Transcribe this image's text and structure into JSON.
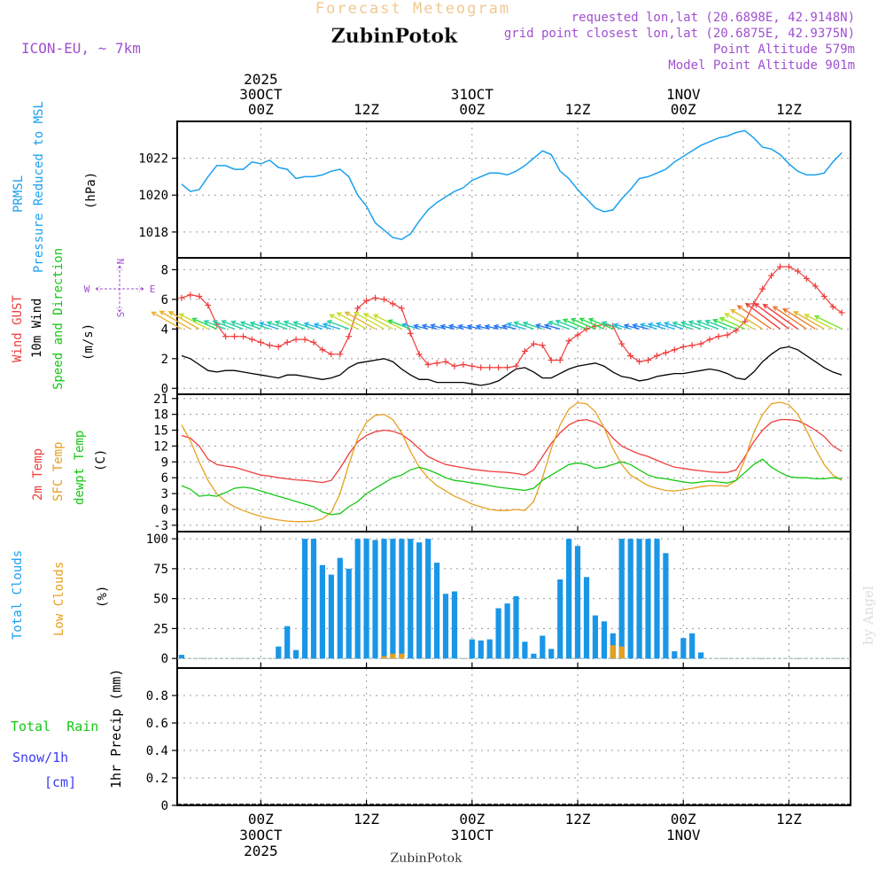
{
  "header": {
    "subtitle": "Forecast Meteogram",
    "station": "ZubinPotok",
    "model": "ICON-EU, ~ 7km",
    "requested": "requested lon,lat (20.6898E, 42.9148N)",
    "closest": "grid point closest lon,lat (20.6875E, 42.9375N)",
    "point_altitude": "Point Altitude 579m",
    "model_altitude": "Model Point Altitude 901m"
  },
  "footer": {
    "station": "ZubinPotok",
    "watermark": "by Angel"
  },
  "time_axis": {
    "top_labels": [
      {
        "h": 0,
        "lines": [
          "2025",
          "30OCT",
          "00Z"
        ]
      },
      {
        "h": 12,
        "lines": [
          "12Z"
        ]
      },
      {
        "h": 24,
        "lines": [
          "31OCT",
          "00Z"
        ]
      },
      {
        "h": 36,
        "lines": [
          "12Z"
        ]
      },
      {
        "h": 48,
        "lines": [
          "1NOV",
          "00Z"
        ]
      },
      {
        "h": 60,
        "lines": [
          "12Z"
        ]
      }
    ],
    "bottom_labels": [
      {
        "h": 0,
        "lines": [
          "00Z",
          "30OCT",
          "2025"
        ]
      },
      {
        "h": 12,
        "lines": [
          "12Z"
        ]
      },
      {
        "h": 24,
        "lines": [
          "00Z",
          "31OCT"
        ]
      },
      {
        "h": 36,
        "lines": [
          "12Z"
        ]
      },
      {
        "h": 48,
        "lines": [
          "00Z",
          "1NOV"
        ]
      },
      {
        "h": 60,
        "lines": [
          "12Z"
        ]
      }
    ]
  },
  "panel_labels": {
    "prmsl": "PRMSL",
    "pressure": "Pressure Reduced to MSL",
    "hpa": "(hPa)",
    "gust": "Wind GUST",
    "wind10": "10m Wind",
    "speed_dir": "Speed and Direction",
    "ms": "(m/s)",
    "compass_n": "N",
    "compass_s": "S",
    "compass_w": "W",
    "compass_e": "E",
    "t2m": "2m Temp",
    "sfc": "SFC Temp",
    "dewpt": "dewpt Temp",
    "degc": "(C)",
    "total_clouds": "Total Clouds",
    "low_clouds": "Low Clouds",
    "pct": "(%)",
    "total_rain": "Total  Rain",
    "snow": "Snow/1h",
    "cm": "[cm]",
    "precip": "1hr Precip (mm)"
  },
  "colors": {
    "pressure": "#1aa0f0",
    "gust": "#f03c3c",
    "wind": "#000000",
    "t2m": "#f03c3c",
    "sfc": "#e6a020",
    "dew": "#14c814",
    "total_clouds": "#1a96e6",
    "low_clouds": "#e6a020",
    "rain": "#14c814",
    "snow": "#3c3cf0",
    "title": "#f0c890",
    "purple": "#a050d0"
  },
  "chart_data": [
    {
      "type": "line",
      "title": "PRMSL Pressure Reduced to MSL",
      "ylabel": "(hPa)",
      "ylim": [
        1016.6,
        1024.0
      ],
      "yticks": [
        1018,
        1020,
        1022
      ],
      "xlim": [
        -9.5,
        67
      ],
      "hours": [
        -9,
        -8,
        -7,
        -6,
        -5,
        -4,
        -3,
        -2,
        -1,
        0,
        1,
        2,
        3,
        4,
        5,
        6,
        7,
        8,
        9,
        10,
        11,
        12,
        13,
        14,
        15,
        16,
        17,
        18,
        19,
        20,
        21,
        22,
        23,
        24,
        25,
        26,
        27,
        28,
        29,
        30,
        31,
        32,
        33,
        34,
        35,
        36,
        37,
        38,
        39,
        40,
        41,
        42,
        43,
        44,
        45,
        46,
        47,
        48,
        49,
        50,
        51,
        52,
        53,
        54,
        55,
        56,
        57,
        58,
        59,
        60,
        61,
        62,
        63,
        64,
        65,
        66
      ],
      "series": [
        {
          "name": "PRMSL",
          "values": [
            1020.6,
            1020.2,
            1020.3,
            1021.0,
            1021.6,
            1021.6,
            1021.4,
            1021.4,
            1021.8,
            1021.7,
            1021.9,
            1021.5,
            1021.4,
            1020.9,
            1021.0,
            1021.0,
            1021.1,
            1021.3,
            1021.4,
            1021.0,
            1020.0,
            1019.4,
            1018.5,
            1018.1,
            1017.7,
            1017.6,
            1017.9,
            1018.6,
            1019.2,
            1019.6,
            1019.9,
            1020.2,
            1020.4,
            1020.8,
            1021.0,
            1021.2,
            1021.2,
            1021.1,
            1021.3,
            1021.6,
            1022.0,
            1022.4,
            1022.2,
            1021.3,
            1020.9,
            1020.3,
            1019.8,
            1019.3,
            1019.1,
            1019.2,
            1019.8,
            1020.3,
            1020.9,
            1021.0,
            1021.2,
            1021.4,
            1021.8,
            1022.1,
            1022.4,
            1022.7,
            1022.9,
            1023.1,
            1023.2,
            1023.4,
            1023.5,
            1023.1,
            1022.6,
            1022.5,
            1022.2,
            1021.7,
            1021.3,
            1021.1,
            1021.1,
            1021.2,
            1021.8,
            1022.3
          ]
        }
      ]
    },
    {
      "type": "line",
      "title": "Wind GUST / 10m Wind Speed and Direction",
      "ylabel": "(m/s)",
      "ylim": [
        -0.4,
        8.8
      ],
      "yticks": [
        0,
        2,
        4,
        6,
        8
      ],
      "hours": [
        -9,
        -8,
        -7,
        -6,
        -5,
        -4,
        -3,
        -2,
        -1,
        0,
        1,
        2,
        3,
        4,
        5,
        6,
        7,
        8,
        9,
        10,
        11,
        12,
        13,
        14,
        15,
        16,
        17,
        18,
        19,
        20,
        21,
        22,
        23,
        24,
        25,
        26,
        27,
        28,
        29,
        30,
        31,
        32,
        33,
        34,
        35,
        36,
        37,
        38,
        39,
        40,
        41,
        42,
        43,
        44,
        45,
        46,
        47,
        48,
        49,
        50,
        51,
        52,
        53,
        54,
        55,
        56,
        57,
        58,
        59,
        60,
        61,
        62,
        63,
        64,
        65,
        66
      ],
      "series": [
        {
          "name": "Wind GUST",
          "values": [
            6.1,
            6.3,
            6.2,
            5.6,
            4.3,
            3.5,
            3.5,
            3.5,
            3.3,
            3.1,
            2.9,
            2.8,
            3.1,
            3.3,
            3.3,
            3.1,
            2.6,
            2.3,
            2.3,
            3.5,
            5.4,
            5.9,
            6.1,
            6.0,
            5.7,
            5.4,
            3.7,
            2.3,
            1.6,
            1.7,
            1.8,
            1.5,
            1.6,
            1.5,
            1.4,
            1.4,
            1.4,
            1.4,
            1.5,
            2.5,
            3.0,
            2.9,
            1.9,
            1.9,
            3.2,
            3.6,
            4.0,
            4.2,
            4.3,
            4.2,
            3.0,
            2.2,
            1.8,
            1.9,
            2.2,
            2.4,
            2.6,
            2.8,
            2.9,
            3.0,
            3.3,
            3.5,
            3.6,
            3.9,
            4.5,
            5.7,
            6.7,
            7.6,
            8.2,
            8.2,
            7.9,
            7.4,
            6.9,
            6.2,
            5.5,
            5.1
          ]
        },
        {
          "name": "10m Wind",
          "values": [
            2.2,
            2.0,
            1.6,
            1.2,
            1.1,
            1.2,
            1.2,
            1.1,
            1.0,
            0.9,
            0.8,
            0.7,
            0.9,
            0.9,
            0.8,
            0.7,
            0.6,
            0.7,
            0.9,
            1.4,
            1.7,
            1.8,
            1.9,
            2.0,
            1.8,
            1.3,
            0.9,
            0.6,
            0.6,
            0.4,
            0.4,
            0.4,
            0.4,
            0.3,
            0.2,
            0.3,
            0.5,
            0.9,
            1.3,
            1.4,
            1.1,
            0.7,
            0.7,
            1.0,
            1.3,
            1.5,
            1.6,
            1.7,
            1.5,
            1.1,
            0.8,
            0.7,
            0.5,
            0.6,
            0.8,
            0.9,
            1.0,
            1.0,
            1.1,
            1.2,
            1.3,
            1.2,
            1.0,
            0.7,
            0.6,
            1.1,
            1.8,
            2.3,
            2.7,
            2.8,
            2.6,
            2.2,
            1.8,
            1.4,
            1.1,
            0.9
          ]
        }
      ],
      "wind_direction_arrows": "colored arrows along ~4 m/s, pointing mostly westward (wind from the east)"
    },
    {
      "type": "line",
      "title": "2m Temp / SFC Temp / dewpt Temp",
      "ylabel": "(C)",
      "ylim": [
        -4.2,
        21.8
      ],
      "yticks": [
        -3,
        0,
        3,
        6,
        9,
        12,
        15,
        18,
        21
      ],
      "hours": [
        -9,
        -8,
        -7,
        -6,
        -5,
        -4,
        -3,
        -2,
        -1,
        0,
        1,
        2,
        3,
        4,
        5,
        6,
        7,
        8,
        9,
        10,
        11,
        12,
        13,
        14,
        15,
        16,
        17,
        18,
        19,
        20,
        21,
        22,
        23,
        24,
        25,
        26,
        27,
        28,
        29,
        30,
        31,
        32,
        33,
        34,
        35,
        36,
        37,
        38,
        39,
        40,
        41,
        42,
        43,
        44,
        45,
        46,
        47,
        48,
        49,
        50,
        51,
        52,
        53,
        54,
        55,
        56,
        57,
        58,
        59,
        60,
        61,
        62,
        63,
        64,
        65,
        66
      ],
      "series": [
        {
          "name": "2m Temp",
          "values": [
            14.0,
            13.5,
            12.0,
            9.5,
            8.5,
            8.2,
            8.0,
            7.5,
            7.0,
            6.5,
            6.3,
            6.0,
            5.8,
            5.6,
            5.5,
            5.3,
            5.1,
            5.5,
            7.8,
            10.5,
            12.8,
            14.0,
            14.7,
            15.0,
            14.8,
            14.2,
            13.0,
            11.5,
            10.0,
            9.2,
            8.5,
            8.2,
            7.9,
            7.6,
            7.4,
            7.2,
            7.1,
            7.0,
            6.8,
            6.5,
            7.5,
            10.0,
            12.5,
            14.5,
            16.0,
            16.8,
            17.0,
            16.5,
            15.5,
            13.5,
            12.0,
            11.2,
            10.5,
            10.0,
            9.3,
            8.6,
            8.0,
            7.8,
            7.5,
            7.3,
            7.1,
            7.0,
            7.0,
            7.5,
            10.0,
            12.8,
            15.0,
            16.5,
            17.0,
            17.0,
            16.8,
            16.0,
            15.0,
            13.8,
            12.0,
            11.0
          ]
        },
        {
          "name": "SFC Temp",
          "values": [
            16.0,
            13.0,
            9.0,
            5.5,
            3.0,
            1.5,
            0.5,
            -0.2,
            -0.8,
            -1.3,
            -1.7,
            -2.0,
            -2.2,
            -2.3,
            -2.3,
            -2.2,
            -1.8,
            -0.5,
            3.0,
            8.5,
            13.5,
            16.5,
            17.8,
            18.0,
            17.0,
            14.5,
            11.0,
            8.0,
            6.0,
            4.5,
            3.5,
            2.5,
            1.8,
            1.0,
            0.5,
            0.0,
            -0.2,
            -0.2,
            0.0,
            -0.2,
            1.5,
            6.0,
            11.5,
            16.0,
            19.0,
            20.2,
            20.0,
            18.5,
            15.5,
            11.5,
            8.5,
            6.5,
            5.5,
            4.5,
            4.0,
            3.6,
            3.5,
            3.7,
            4.0,
            4.3,
            4.5,
            4.5,
            4.4,
            5.5,
            9.5,
            14.5,
            18.0,
            20.0,
            20.3,
            19.8,
            18.0,
            15.0,
            11.5,
            8.5,
            6.5,
            5.5
          ]
        },
        {
          "name": "dewpt Temp",
          "values": [
            4.5,
            3.8,
            2.5,
            2.7,
            2.5,
            3.2,
            4.0,
            4.2,
            4.0,
            3.5,
            3.0,
            2.5,
            2.0,
            1.5,
            1.0,
            0.5,
            -0.5,
            -1.0,
            -0.8,
            0.5,
            1.5,
            3.0,
            4.0,
            5.0,
            6.0,
            6.5,
            7.5,
            8.0,
            7.5,
            6.8,
            6.0,
            5.5,
            5.3,
            5.0,
            4.8,
            4.5,
            4.2,
            4.0,
            3.8,
            3.6,
            4.0,
            5.5,
            6.5,
            7.5,
            8.5,
            8.8,
            8.5,
            7.8,
            8.0,
            8.5,
            9.0,
            8.5,
            7.5,
            6.5,
            6.0,
            5.8,
            5.5,
            5.2,
            5.0,
            5.2,
            5.4,
            5.2,
            5.0,
            5.5,
            7.0,
            8.5,
            9.5,
            8.0,
            7.0,
            6.2,
            6.0,
            6.0,
            5.8,
            5.8,
            6.0,
            5.8
          ]
        }
      ]
    },
    {
      "type": "bar",
      "title": "Total Clouds / Low Clouds",
      "ylabel": "(%)",
      "ylim": [
        -8,
        106
      ],
      "yticks": [
        0,
        25,
        50,
        75,
        100
      ],
      "hours": [
        -9,
        -8,
        -7,
        -6,
        -5,
        -4,
        -3,
        -2,
        -1,
        0,
        1,
        2,
        3,
        4,
        5,
        6,
        7,
        8,
        9,
        10,
        11,
        12,
        13,
        14,
        15,
        16,
        17,
        18,
        19,
        20,
        21,
        22,
        23,
        24,
        25,
        26,
        27,
        28,
        29,
        30,
        31,
        32,
        33,
        34,
        35,
        36,
        37,
        38,
        39,
        40,
        41,
        42,
        43,
        44,
        45,
        46,
        47,
        48,
        49,
        50,
        51,
        52,
        53,
        54,
        55,
        56,
        57,
        58,
        59,
        60,
        61,
        62,
        63,
        64,
        65,
        66
      ],
      "series": [
        {
          "name": "Total Clouds",
          "values": [
            3,
            0,
            0,
            0,
            0,
            0,
            0,
            0,
            0,
            0,
            0,
            10,
            27,
            7,
            100,
            100,
            78,
            70,
            84,
            75,
            100,
            100,
            99,
            100,
            100,
            100,
            100,
            97,
            100,
            80,
            54,
            56,
            0,
            16,
            15,
            16,
            42,
            46,
            52,
            14,
            4,
            19,
            8,
            66,
            100,
            94,
            68,
            36,
            31,
            21,
            100,
            100,
            100,
            100,
            100,
            88,
            6,
            17,
            21,
            5,
            0,
            0,
            0,
            0,
            0,
            0,
            0,
            0,
            0,
            0,
            0,
            0,
            0,
            0,
            0,
            0
          ]
        },
        {
          "name": "Low Clouds",
          "values": [
            0,
            0,
            0,
            0,
            0,
            0,
            0,
            0,
            0,
            0,
            0,
            0,
            0,
            0,
            0,
            0,
            0,
            0,
            0,
            0,
            0,
            0,
            0,
            2,
            4,
            4,
            0,
            0,
            0,
            0,
            0,
            0,
            0,
            0,
            0,
            0,
            0,
            0,
            0,
            0,
            0,
            0,
            0,
            0,
            0,
            0,
            0,
            0,
            0,
            11,
            10,
            0,
            0,
            0,
            0,
            0,
            0,
            0,
            0,
            0,
            0,
            0,
            0,
            0,
            0,
            0,
            0,
            0,
            0,
            0,
            0,
            0,
            0,
            0,
            0,
            0
          ]
        }
      ]
    },
    {
      "type": "bar",
      "title": "1hr Precip (mm)",
      "ylabel": "1hr Precip (mm)",
      "ylim": [
        0,
        1.0
      ],
      "yticks": [
        0,
        0.2,
        0.4,
        0.6,
        0.8
      ],
      "ytick_labels": [
        "0",
        "0.2",
        "0.4",
        "0.6",
        "0.8"
      ],
      "series": [
        {
          "name": "Total Rain",
          "values": []
        },
        {
          "name": "Snow/1h",
          "values": []
        }
      ]
    }
  ]
}
